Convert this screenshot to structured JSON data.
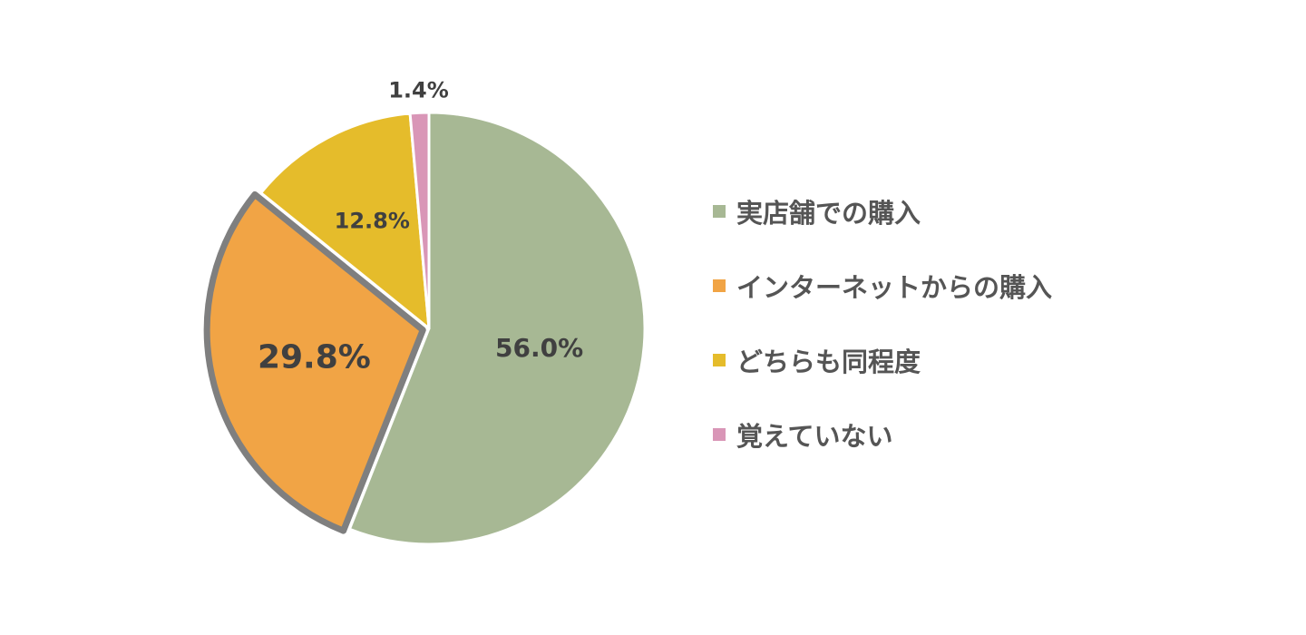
{
  "chart_data": {
    "type": "pie",
    "categories": [
      "実店舗での購入",
      "インターネットからの購入",
      "どちらも同程度",
      "覚えていない"
    ],
    "values": [
      56.0,
      29.8,
      12.8,
      1.4
    ],
    "value_labels": [
      "56.0%",
      "29.8%",
      "12.8%",
      "1.4%"
    ],
    "colors": [
      "#a7b894",
      "#f1a445",
      "#e5bc2b",
      "#d996b7"
    ],
    "highlighted_slice": "インターネットからの購入",
    "start": "12 o'clock, clockwise",
    "legend_position": "right"
  }
}
